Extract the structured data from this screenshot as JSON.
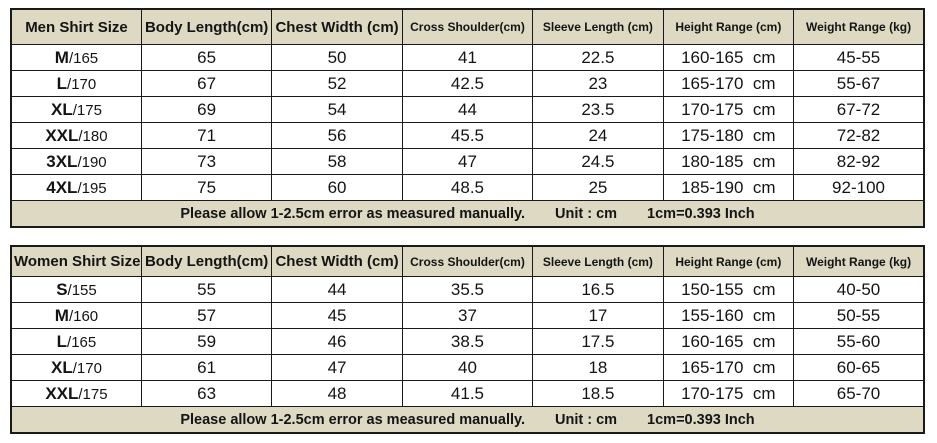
{
  "style": {
    "header_bg": "#ddd9c3",
    "border_color": "#1a1a1a",
    "text_color": "#141414",
    "body_bg": "#ffffff"
  },
  "chart_data": [
    {
      "type": "table",
      "title": "Men Shirt Size",
      "columns": [
        "Men Shirt Size",
        "Body Length(cm)",
        "Chest Width (cm)",
        "Cross Shoulder(cm)",
        "Sleeve Length (cm)",
        "Height Range (cm)",
        "Weight Range (kg)"
      ],
      "rows": [
        [
          "M/165",
          "65",
          "50",
          "41",
          "22.5",
          "160-165  cm",
          "45-55"
        ],
        [
          "L/170",
          "67",
          "52",
          "42.5",
          "23",
          "165-170  cm",
          "55-67"
        ],
        [
          "XL/175",
          "69",
          "54",
          "44",
          "23.5",
          "170-175  cm",
          "67-72"
        ],
        [
          "XXL/180",
          "71",
          "56",
          "45.5",
          "24",
          "175-180  cm",
          "72-82"
        ],
        [
          "3XL/190",
          "73",
          "58",
          "47",
          "24.5",
          "180-185  cm",
          "82-92"
        ],
        [
          "4XL/195",
          "75",
          "60",
          "48.5",
          "25",
          "185-190  cm",
          "92-100"
        ]
      ],
      "footer": {
        "note": "Please allow 1-2.5cm error as measured manually.",
        "unit": "Unit : cm",
        "conversion": "1cm=0.393 Inch"
      }
    },
    {
      "type": "table",
      "title": "Women Shirt Size",
      "columns": [
        "Women Shirt Size",
        "Body Length(cm)",
        "Chest Width (cm)",
        "Cross Shoulder(cm)",
        "Sleeve Length (cm)",
        "Height Range (cm)",
        "Weight Range (kg)"
      ],
      "rows": [
        [
          "S/155",
          "55",
          "44",
          "35.5",
          "16.5",
          "150-155  cm",
          "40-50"
        ],
        [
          "M/160",
          "57",
          "45",
          "37",
          "17",
          "155-160  cm",
          "50-55"
        ],
        [
          "L/165",
          "59",
          "46",
          "38.5",
          "17.5",
          "160-165  cm",
          "55-60"
        ],
        [
          "XL/170",
          "61",
          "47",
          "40",
          "18",
          "165-170  cm",
          "60-65"
        ],
        [
          "XXL/175",
          "63",
          "48",
          "41.5",
          "18.5",
          "170-175  cm",
          "65-70"
        ]
      ],
      "footer": {
        "note": "Please allow 1-2.5cm error as measured manually.",
        "unit": "Unit : cm",
        "conversion": "1cm=0.393 Inch"
      }
    }
  ]
}
